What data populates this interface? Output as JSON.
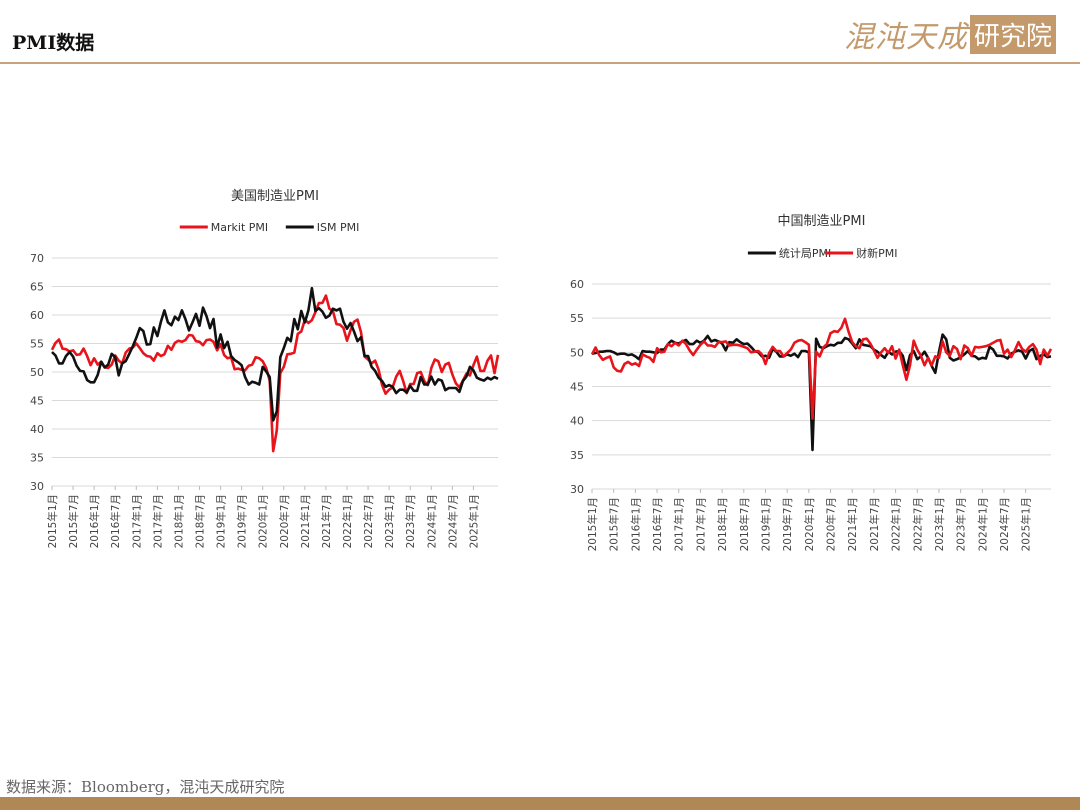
{
  "header": {
    "title": "PMI数据",
    "logo_text": "混沌天成",
    "logo_box_text": "研究院"
  },
  "footer": {
    "source": "数据来源：Bloomberg，混沌天成研究院"
  },
  "colors": {
    "red": "#e8141b",
    "black": "#111111",
    "grid": "#d9d9d9",
    "accent": "#c49a6c"
  },
  "chart_data": [
    {
      "type": "line",
      "title": "美国制造业PMI",
      "xlabel": "",
      "ylabel": "",
      "ylim": [
        30,
        70
      ],
      "yticks": [
        30,
        35,
        40,
        45,
        50,
        55,
        60,
        65,
        70
      ],
      "legend_position": "top-center",
      "grid": true,
      "x_start": "2015-01",
      "x_end": "2025-08",
      "xtick_labels": [
        "2015年1月",
        "2015年7月",
        "2016年1月",
        "2016年7月",
        "2017年1月",
        "2017年7月",
        "2018年1月",
        "2018年7月",
        "2019年1月",
        "2019年7月",
        "2020年1月",
        "2020年7月",
        "2021年1月",
        "2021年7月",
        "2022年1月",
        "2022年7月",
        "2023年1月",
        "2023年7月",
        "2024年1月",
        "2024年7月",
        "2025年1月"
      ],
      "series": [
        {
          "name": "Markit PMI",
          "color": "#e8141b",
          "values": [
            53.9,
            55.1,
            55.7,
            54.1,
            54.0,
            53.6,
            53.8,
            53.0,
            53.1,
            54.1,
            52.8,
            51.2,
            52.4,
            51.3,
            51.8,
            50.8,
            50.7,
            51.3,
            52.9,
            52.0,
            51.5,
            53.4,
            54.1,
            54.3,
            55.0,
            54.2,
            53.3,
            52.8,
            52.7,
            52.0,
            53.3,
            52.8,
            53.1,
            54.6,
            53.9,
            55.1,
            55.5,
            55.3,
            55.6,
            56.5,
            56.4,
            55.4,
            55.3,
            54.7,
            55.6,
            55.7,
            55.3,
            53.8,
            54.9,
            53.0,
            52.4,
            52.6,
            50.5,
            50.6,
            50.4,
            50.3,
            51.1,
            51.3,
            52.6,
            52.4,
            51.9,
            50.7,
            48.5,
            36.1,
            39.8,
            49.8,
            50.9,
            53.1,
            53.2,
            53.4,
            56.7,
            57.1,
            59.2,
            58.6,
            59.1,
            60.5,
            62.1,
            62.1,
            63.4,
            61.1,
            60.7,
            58.4,
            58.3,
            57.7,
            55.5,
            57.3,
            58.8,
            59.2,
            57.0,
            52.7,
            52.2,
            51.5,
            52.0,
            50.4,
            47.7,
            46.2,
            46.9,
            47.3,
            49.2,
            50.2,
            48.4,
            46.3,
            47.9,
            47.9,
            49.8,
            50.0,
            48.4,
            47.7,
            50.7,
            52.2,
            51.9,
            50.0,
            51.3,
            51.6,
            49.6,
            48.0,
            47.3,
            48.5,
            49.7,
            49.4,
            51.2,
            52.7,
            50.2,
            50.2,
            52.0,
            52.9,
            49.8,
            53.0
          ],
          "note": "monthly series approximated from chart"
        },
        {
          "name": "ISM PMI",
          "color": "#111111",
          "values": [
            53.5,
            52.9,
            51.5,
            51.5,
            52.8,
            53.5,
            52.7,
            51.1,
            50.2,
            50.1,
            48.6,
            48.2,
            48.2,
            49.5,
            51.8,
            50.8,
            51.3,
            53.2,
            52.6,
            49.4,
            51.5,
            51.9,
            53.2,
            54.5,
            56.0,
            57.7,
            57.2,
            54.8,
            54.9,
            57.8,
            56.3,
            58.8,
            60.8,
            58.7,
            58.2,
            59.7,
            59.1,
            60.8,
            59.3,
            57.3,
            58.7,
            60.2,
            58.1,
            61.3,
            59.8,
            57.7,
            59.3,
            54.3,
            56.6,
            54.2,
            55.3,
            52.8,
            52.1,
            51.7,
            51.2,
            49.1,
            47.8,
            48.3,
            48.1,
            47.8,
            50.9,
            50.1,
            49.1,
            41.5,
            43.1,
            52.6,
            54.2,
            56.0,
            55.4,
            59.3,
            57.5,
            60.7,
            58.7,
            60.8,
            64.7,
            60.7,
            61.2,
            60.6,
            59.5,
            59.9,
            61.1,
            60.8,
            61.1,
            58.8,
            57.6,
            58.6,
            57.1,
            55.4,
            56.1,
            52.8,
            52.8,
            50.9,
            50.2,
            49.0,
            48.4,
            47.4,
            47.7,
            47.4,
            46.3,
            46.9,
            46.9,
            46.4,
            47.6,
            46.7,
            46.7,
            49.1,
            47.8,
            47.8,
            49.2,
            47.8,
            48.7,
            48.5,
            46.8,
            47.2,
            47.2,
            47.2,
            46.5,
            48.4,
            49.2,
            50.9,
            50.3,
            49.0,
            48.7,
            48.5,
            49.0,
            48.7,
            49.1,
            48.8
          ]
        }
      ]
    },
    {
      "type": "line",
      "title": "中国制造业PMI",
      "xlabel": "",
      "ylabel": "",
      "ylim": [
        30,
        60
      ],
      "yticks": [
        30,
        35,
        40,
        45,
        50,
        55,
        60
      ],
      "legend_position": "top-center",
      "grid": true,
      "x_start": "2015-01",
      "x_end": "2025-08",
      "xtick_labels": [
        "2015年1月",
        "2015年7月",
        "2016年1月",
        "2016年7月",
        "2017年1月",
        "2017年7月",
        "2018年1月",
        "2018年7月",
        "2019年1月",
        "2019年7月",
        "2020年1月",
        "2020年7月",
        "2021年1月",
        "2021年7月",
        "2022年1月",
        "2022年7月",
        "2023年1月",
        "2023年7月",
        "2024年1月",
        "2024年7月",
        "2025年1月"
      ],
      "series": [
        {
          "name": "统计局PMI",
          "color": "#111111",
          "values": [
            49.8,
            49.9,
            50.1,
            50.1,
            50.2,
            50.2,
            50.0,
            49.7,
            49.8,
            49.8,
            49.6,
            49.7,
            49.4,
            49.0,
            50.2,
            50.1,
            50.1,
            50.0,
            49.9,
            50.4,
            50.4,
            51.2,
            51.7,
            51.4,
            51.3,
            51.6,
            51.8,
            51.2,
            51.2,
            51.7,
            51.4,
            51.7,
            52.4,
            51.6,
            51.8,
            51.6,
            51.3,
            50.3,
            51.5,
            51.4,
            51.9,
            51.5,
            51.2,
            51.3,
            50.8,
            50.2,
            50.0,
            49.4,
            49.5,
            49.2,
            50.5,
            50.1,
            49.4,
            49.4,
            49.7,
            49.5,
            49.8,
            49.3,
            50.2,
            50.2,
            50.0,
            35.7,
            52.0,
            50.8,
            50.6,
            50.9,
            51.1,
            51.0,
            51.4,
            51.4,
            52.1,
            51.9,
            51.3,
            50.6,
            51.9,
            51.1,
            51.0,
            50.9,
            50.4,
            50.1,
            49.6,
            49.2,
            50.1,
            49.7,
            50.1,
            50.2,
            49.5,
            47.4,
            49.6,
            50.2,
            49.0,
            49.4,
            50.1,
            49.2,
            48.0,
            47.0,
            50.1,
            52.6,
            51.9,
            49.2,
            48.8,
            49.0,
            49.3,
            49.7,
            50.2,
            49.5,
            49.4,
            49.0,
            49.2,
            49.1,
            50.8,
            50.4,
            49.5,
            49.5,
            49.4,
            49.1,
            49.8,
            50.1,
            50.3,
            50.1,
            49.1,
            50.2,
            50.5,
            49.0,
            49.5,
            49.7,
            49.3,
            49.4
          ],
          "note": "monthly series approximated from chart"
        },
        {
          "name": "财新PMI",
          "color": "#e8141b",
          "values": [
            49.7,
            50.7,
            49.6,
            48.9,
            49.2,
            49.4,
            47.8,
            47.3,
            47.2,
            48.3,
            48.6,
            48.2,
            48.4,
            48.0,
            49.7,
            49.4,
            49.2,
            48.6,
            50.6,
            50.0,
            50.1,
            51.2,
            50.9,
            51.4,
            51.0,
            51.7,
            51.2,
            50.3,
            49.6,
            50.4,
            51.1,
            51.6,
            51.0,
            51.0,
            50.8,
            51.5,
            51.5,
            51.6,
            51.0,
            51.1,
            51.1,
            51.0,
            50.8,
            50.6,
            50.0,
            50.1,
            50.2,
            49.7,
            48.3,
            49.9,
            50.8,
            50.2,
            50.2,
            49.4,
            49.9,
            50.4,
            51.4,
            51.7,
            51.8,
            51.5,
            51.1,
            40.3,
            50.1,
            49.4,
            50.7,
            51.2,
            52.8,
            53.1,
            53.0,
            53.6,
            54.9,
            53.0,
            51.5,
            50.9,
            50.6,
            51.9,
            52.0,
            51.3,
            50.3,
            49.2,
            50.0,
            50.6,
            49.9,
            50.9,
            49.1,
            50.4,
            48.1,
            46.0,
            48.1,
            51.7,
            50.4,
            49.5,
            48.1,
            49.2,
            48.1,
            49.4,
            49.2,
            51.6,
            50.0,
            49.5,
            50.9,
            50.5,
            49.0,
            51.0,
            50.6,
            49.5,
            50.8,
            50.7,
            50.8,
            50.9,
            51.1,
            51.4,
            51.7,
            51.8,
            49.8,
            50.4,
            49.3,
            50.3,
            51.5,
            50.5,
            50.1,
            50.8,
            51.2,
            50.4,
            48.3,
            50.4,
            49.5,
            50.5
          ]
        }
      ]
    }
  ]
}
